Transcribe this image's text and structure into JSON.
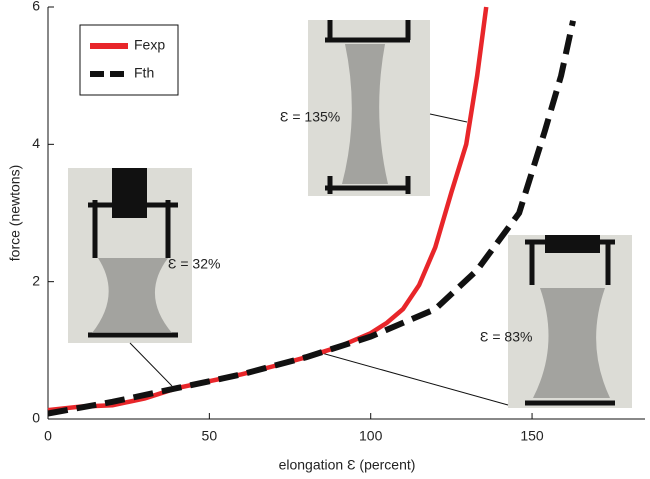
{
  "chart_data": {
    "type": "line",
    "xlabel": "elongation Ɛ (percent)",
    "ylabel": "force (newtons)",
    "xlim": [
      0,
      185
    ],
    "ylim": [
      0,
      6
    ],
    "xticks": [
      0,
      50,
      100,
      150
    ],
    "yticks": [
      0,
      2,
      4,
      6
    ],
    "legend": "upper left",
    "series": [
      {
        "name": "Fexp",
        "color": "#e8262a",
        "dashed": false,
        "x": [
          0,
          10,
          20,
          30,
          40,
          50,
          60,
          70,
          80,
          90,
          100,
          105,
          110,
          115,
          120,
          125,
          129.6,
          133,
          135.8
        ],
        "values": [
          0.13,
          0.18,
          0.2,
          0.3,
          0.45,
          0.55,
          0.65,
          0.77,
          0.9,
          1.05,
          1.25,
          1.4,
          1.6,
          1.95,
          2.5,
          3.3,
          4.0,
          5.0,
          6.0
        ]
      },
      {
        "name": "Fth",
        "color": "#111111",
        "dashed": true,
        "x": [
          0,
          20,
          40,
          60,
          80,
          100,
          120,
          133,
          146,
          154,
          159,
          162.7
        ],
        "values": [
          0.08,
          0.25,
          0.45,
          0.65,
          0.9,
          1.2,
          1.6,
          2.17,
          3.0,
          4.2,
          5.0,
          5.8
        ]
      }
    ],
    "annotations": [
      "Ɛ = 135%",
      "Ɛ = 32%",
      "Ɛ = 83%"
    ]
  }
}
